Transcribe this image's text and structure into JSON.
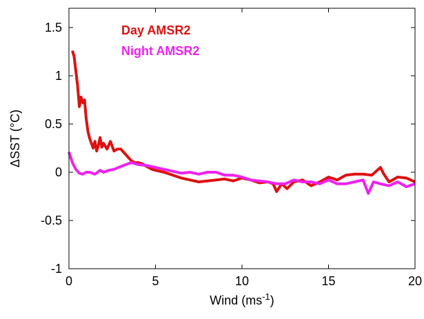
{
  "chart_data": {
    "type": "line",
    "title": "",
    "xlabel": "Wind (ms",
    "xlabel_sup": "-1",
    "xlabel_close": ")",
    "ylabel": "ΔSST (°C)",
    "xlim": [
      0,
      20
    ],
    "ylim": [
      -1,
      1.7
    ],
    "xticks": [
      0,
      5,
      10,
      15,
      20
    ],
    "yticks": [
      -1,
      -0.5,
      0,
      0.5,
      1,
      1.5
    ],
    "xtick_labels": [
      "0",
      "5",
      "10",
      "15",
      "20"
    ],
    "ytick_labels": [
      "-1",
      "-0.5",
      "0",
      "0.5",
      "1",
      "1.5"
    ],
    "grid": false,
    "legend_placement": "top-left",
    "series": [
      {
        "name": "Day AMSR2",
        "color": "#dd1111",
        "x": [
          0.2,
          0.3,
          0.4,
          0.5,
          0.6,
          0.7,
          0.8,
          0.9,
          1.0,
          1.1,
          1.2,
          1.3,
          1.4,
          1.5,
          1.6,
          1.7,
          1.8,
          1.9,
          2.0,
          2.2,
          2.4,
          2.6,
          2.8,
          3.0,
          3.2,
          3.4,
          3.6,
          3.8,
          4.0,
          4.2,
          4.4,
          4.6,
          4.8,
          5.0,
          5.5,
          6.0,
          6.5,
          7.0,
          7.5,
          8.0,
          8.5,
          9.0,
          9.5,
          10.0,
          10.5,
          11.0,
          11.5,
          11.8,
          12.0,
          12.3,
          12.6,
          13.0,
          13.5,
          14.0,
          14.5,
          15.0,
          15.5,
          16.0,
          16.5,
          17.0,
          17.5,
          18.0,
          18.2,
          18.5,
          19.0,
          19.5,
          20.0
        ],
        "y": [
          1.26,
          1.2,
          1.05,
          0.9,
          0.68,
          0.78,
          0.72,
          0.75,
          0.55,
          0.42,
          0.35,
          0.3,
          0.25,
          0.32,
          0.22,
          0.28,
          0.36,
          0.26,
          0.3,
          0.24,
          0.32,
          0.22,
          0.24,
          0.24,
          0.2,
          0.16,
          0.12,
          0.1,
          0.1,
          0.09,
          0.07,
          0.05,
          0.03,
          0.02,
          0.0,
          -0.03,
          -0.06,
          -0.08,
          -0.1,
          -0.09,
          -0.08,
          -0.07,
          -0.09,
          -0.06,
          -0.08,
          -0.11,
          -0.1,
          -0.12,
          -0.2,
          -0.12,
          -0.17,
          -0.1,
          -0.08,
          -0.14,
          -0.1,
          -0.05,
          -0.08,
          -0.03,
          -0.02,
          -0.02,
          -0.03,
          0.05,
          -0.02,
          -0.1,
          -0.05,
          -0.06,
          -0.1
        ]
      },
      {
        "name": "Night AMSR2",
        "color": "#ee22ee",
        "x": [
          0.0,
          0.2,
          0.4,
          0.6,
          0.8,
          1.0,
          1.2,
          1.5,
          1.8,
          2.0,
          2.3,
          2.6,
          3.0,
          3.3,
          3.6,
          4.0,
          4.5,
          5.0,
          5.5,
          6.0,
          6.5,
          7.0,
          7.5,
          8.0,
          8.5,
          9.0,
          9.5,
          10.0,
          10.5,
          11.0,
          11.5,
          12.0,
          12.5,
          13.0,
          13.5,
          14.0,
          14.5,
          15.0,
          15.5,
          16.0,
          16.5,
          17.0,
          17.3,
          17.6,
          18.0,
          18.5,
          19.0,
          19.5,
          20.0
        ],
        "y": [
          0.21,
          0.1,
          0.03,
          -0.01,
          -0.02,
          0.0,
          0.0,
          -0.02,
          0.02,
          0.0,
          0.02,
          0.03,
          0.06,
          0.08,
          0.1,
          0.08,
          0.07,
          0.05,
          0.03,
          0.01,
          -0.01,
          0.0,
          -0.02,
          0.0,
          0.0,
          -0.03,
          -0.03,
          -0.05,
          -0.08,
          -0.09,
          -0.1,
          -0.12,
          -0.12,
          -0.08,
          -0.1,
          -0.1,
          -0.12,
          -0.08,
          -0.12,
          -0.12,
          -0.1,
          -0.08,
          -0.22,
          -0.1,
          -0.12,
          -0.14,
          -0.1,
          -0.15,
          -0.12
        ]
      }
    ]
  }
}
